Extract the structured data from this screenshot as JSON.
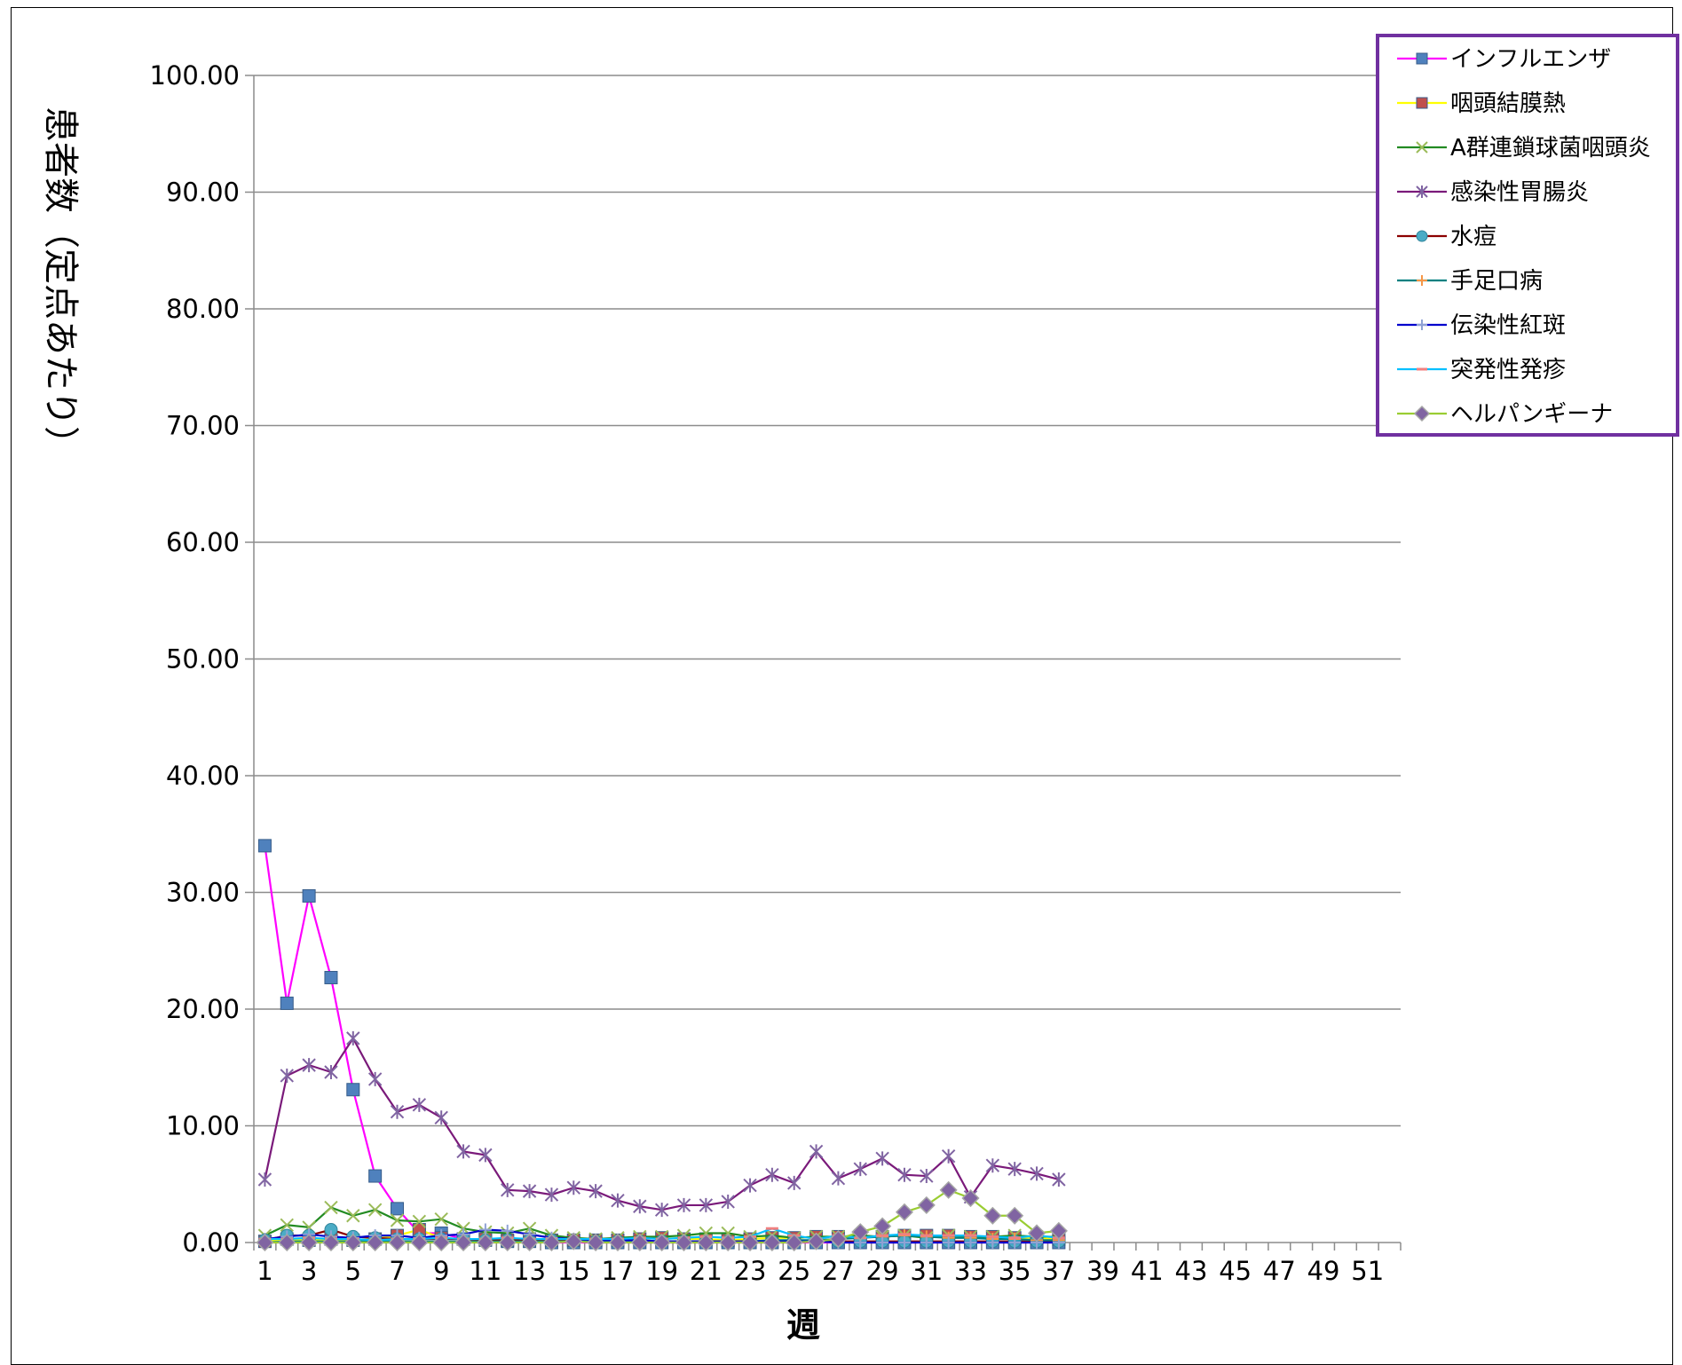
{
  "chart_data": {
    "type": "line",
    "xlabel": "週",
    "ylabel": "患者数（定点あたり）",
    "ylim": [
      0,
      100
    ],
    "y_ticks": [
      "0.00",
      "10.00",
      "20.00",
      "30.00",
      "40.00",
      "50.00",
      "60.00",
      "70.00",
      "80.00",
      "90.00",
      "100.00"
    ],
    "x_categories": [
      1,
      2,
      3,
      4,
      5,
      6,
      7,
      8,
      9,
      10,
      11,
      12,
      13,
      14,
      15,
      16,
      17,
      18,
      19,
      20,
      21,
      22,
      23,
      24,
      25,
      26,
      27,
      28,
      29,
      30,
      31,
      32,
      33,
      34,
      35,
      36,
      37,
      38,
      39,
      40,
      41,
      42,
      43,
      44,
      45,
      46,
      47,
      48,
      49,
      50,
      51,
      52
    ],
    "x_tick_labels": [
      "1",
      "3",
      "5",
      "7",
      "9",
      "11",
      "13",
      "15",
      "17",
      "19",
      "21",
      "23",
      "25",
      "27",
      "29",
      "31",
      "33",
      "35",
      "37",
      "39",
      "41",
      "43",
      "45",
      "47",
      "49",
      "51"
    ],
    "grid": true,
    "legend_position": "top-right",
    "series": [
      {
        "name": "インフルエンザ",
        "color": "#ff00ff",
        "marker": "square",
        "marker_color": "#4f81bd",
        "values": [
          34.0,
          20.5,
          29.7,
          22.7,
          13.1,
          5.7,
          2.9,
          0.8,
          0.8,
          0.3,
          0.2,
          0.1,
          0.1,
          0.0,
          0.0,
          0.0,
          0.0,
          0.0,
          0.0,
          0.0,
          0.0,
          0.0,
          0.0,
          0.0,
          0.0,
          0.0,
          0.0,
          0.0,
          0.0,
          0.0,
          0.0,
          0.0,
          0.0,
          0.0,
          0.0,
          0.0,
          0.0
        ]
      },
      {
        "name": "咽頭結膜熱",
        "color": "#ffff00",
        "marker": "square",
        "marker_color": "#c0504d",
        "values": [
          0.1,
          0.3,
          0.2,
          0.3,
          0.2,
          0.3,
          0.6,
          1.1,
          0.4,
          0.3,
          0.3,
          0.2,
          0.3,
          0.2,
          0.2,
          0.2,
          0.2,
          0.3,
          0.4,
          0.3,
          0.3,
          0.2,
          0.3,
          0.4,
          0.4,
          0.5,
          0.5,
          0.5,
          0.5,
          0.6,
          0.6,
          0.6,
          0.5,
          0.5,
          0.4,
          0.4,
          0.3
        ]
      },
      {
        "name": "A群連鎖球菌咽頭炎",
        "color": "#228b22",
        "marker": "x",
        "marker_color": "#9bbb59",
        "values": [
          0.6,
          1.5,
          1.3,
          3.0,
          2.3,
          2.8,
          1.9,
          1.8,
          2.0,
          1.2,
          0.9,
          0.8,
          1.2,
          0.6,
          0.4,
          0.3,
          0.4,
          0.5,
          0.5,
          0.6,
          0.8,
          0.8,
          0.5,
          0.6,
          0.4,
          0.5,
          0.5,
          0.6,
          0.5,
          0.6,
          0.4,
          0.6,
          0.5,
          0.5,
          0.6,
          0.5,
          0.5
        ]
      },
      {
        "name": "感染性胃腸炎",
        "color": "#7a1a7a",
        "marker": "star",
        "marker_color": "#8064a2",
        "values": [
          5.4,
          14.3,
          15.2,
          14.6,
          17.5,
          14.0,
          11.2,
          11.8,
          10.7,
          7.8,
          7.5,
          4.5,
          4.4,
          4.1,
          4.7,
          4.4,
          3.6,
          3.1,
          2.8,
          3.2,
          3.2,
          3.5,
          4.9,
          5.8,
          5.1,
          7.8,
          5.5,
          6.3,
          7.2,
          5.8,
          5.7,
          7.4,
          3.9,
          6.6,
          6.3,
          5.9,
          5.4
        ]
      },
      {
        "name": "水痘",
        "color": "#8b0000",
        "marker": "circle",
        "marker_color": "#4bacc6",
        "values": [
          0.2,
          0.6,
          0.6,
          1.1,
          0.5,
          0.4,
          0.3,
          0.3,
          0.3,
          0.3,
          0.2,
          0.2,
          0.2,
          0.2,
          0.1,
          0.1,
          0.1,
          0.1,
          0.1,
          0.1,
          0.1,
          0.1,
          0.1,
          0.1,
          0.1,
          0.1,
          0.1,
          0.1,
          0.1,
          0.1,
          0.1,
          0.1,
          0.1,
          0.1,
          0.1,
          0.1,
          0.1
        ]
      },
      {
        "name": "手足口病",
        "color": "#008080",
        "marker": "plus",
        "marker_color": "#f79646",
        "values": [
          0.0,
          0.1,
          0.1,
          0.1,
          0.1,
          0.1,
          0.1,
          0.1,
          0.1,
          0.1,
          0.1,
          0.1,
          0.1,
          0.1,
          0.1,
          0.1,
          0.1,
          0.1,
          0.1,
          0.1,
          0.1,
          0.1,
          0.1,
          0.2,
          0.2,
          0.2,
          0.3,
          0.4,
          0.5,
          0.6,
          0.5,
          0.4,
          0.4,
          0.3,
          0.3,
          0.2,
          0.2
        ]
      },
      {
        "name": "伝染性紅斑",
        "color": "#0000cd",
        "marker": "plus",
        "marker_color": "#8fa2d4",
        "values": [
          0.3,
          0.5,
          0.7,
          0.5,
          0.4,
          0.6,
          0.6,
          0.4,
          0.6,
          0.7,
          1.1,
          1.0,
          0.7,
          0.4,
          0.3,
          0.2,
          0.2,
          0.2,
          0.1,
          0.1,
          0.1,
          0.1,
          0.1,
          0.1,
          0.1,
          0.1,
          0.0,
          0.0,
          0.0,
          0.0,
          0.0,
          0.0,
          0.0,
          0.0,
          0.0,
          0.0,
          0.0
        ]
      },
      {
        "name": "突発性発疹",
        "color": "#00bfff",
        "marker": "dash",
        "marker_color": "#f08080",
        "values": [
          0.3,
          0.3,
          0.4,
          0.3,
          0.3,
          0.2,
          0.3,
          0.3,
          0.4,
          0.3,
          0.3,
          0.4,
          0.3,
          0.3,
          0.3,
          0.3,
          0.3,
          0.4,
          0.3,
          0.4,
          0.5,
          0.4,
          0.5,
          1.2,
          0.6,
          0.3,
          0.6,
          0.4,
          0.6,
          0.7,
          0.6,
          0.6,
          0.6,
          0.5,
          0.4,
          0.6,
          0.4
        ]
      },
      {
        "name": "ヘルパンギーナ",
        "color": "#9acd32",
        "marker": "diamond",
        "marker_color": "#8064a2",
        "values": [
          0.0,
          0.0,
          0.0,
          0.0,
          0.0,
          0.0,
          0.0,
          0.0,
          0.0,
          0.0,
          0.0,
          0.0,
          0.0,
          0.0,
          0.1,
          0.0,
          0.0,
          0.0,
          0.0,
          0.0,
          0.0,
          0.0,
          0.0,
          0.0,
          0.0,
          0.1,
          0.3,
          0.9,
          1.4,
          2.6,
          3.2,
          4.5,
          3.8,
          2.3,
          2.3,
          0.8,
          1.0
        ]
      }
    ]
  }
}
